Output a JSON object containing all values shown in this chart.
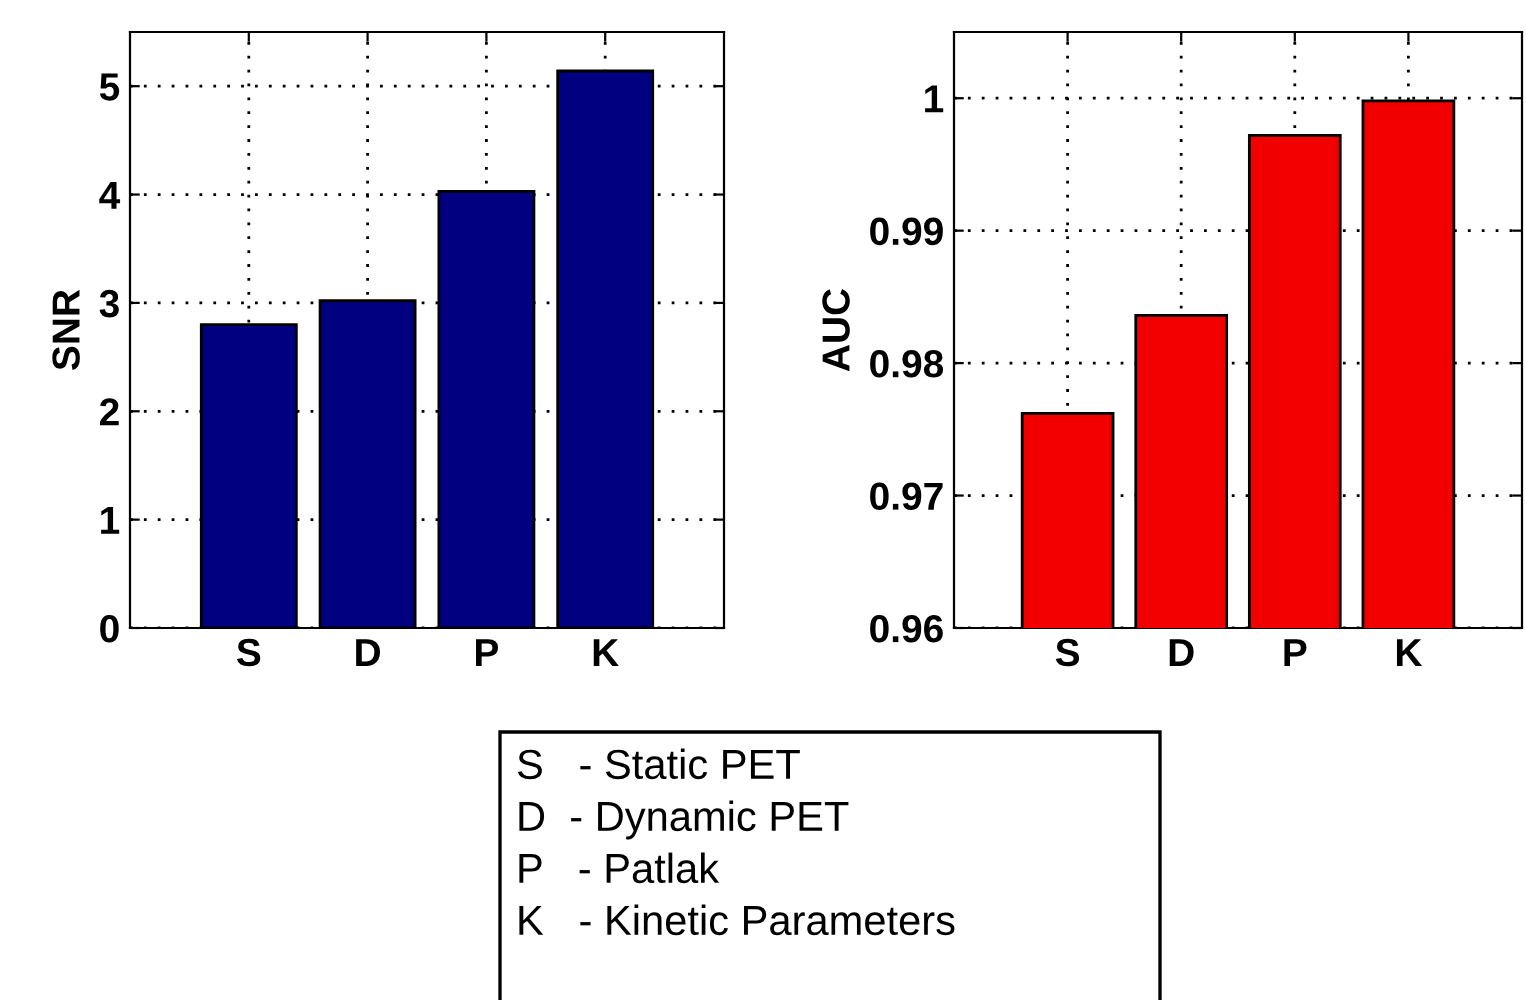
{
  "chart_data": [
    {
      "type": "bar",
      "ylabel": "SNR",
      "categories": [
        "S",
        "D",
        "P",
        "K"
      ],
      "values": [
        2.8,
        3.02,
        4.03,
        5.14
      ],
      "color": "#000080",
      "ylim": [
        0,
        5.5
      ],
      "yticks": [
        0,
        1,
        2,
        3,
        4,
        5
      ],
      "grid": true,
      "legend": false,
      "annotations": [
        "S   - Static PET",
        "D  - Dynamic PET",
        "P   - Patlak",
        "K   - Kinetic Parameters"
      ]
    },
    {
      "type": "bar",
      "ylabel": "AUC",
      "categories": [
        "S",
        "D",
        "P",
        "K"
      ],
      "values": [
        0.9762,
        0.9836,
        0.9972,
        0.9998
      ],
      "color": "#f20000",
      "ylim": [
        0.96,
        1.005
      ],
      "yticks": [
        0.96,
        0.97,
        0.98,
        0.99,
        1
      ],
      "grid": true,
      "legend": false
    }
  ]
}
